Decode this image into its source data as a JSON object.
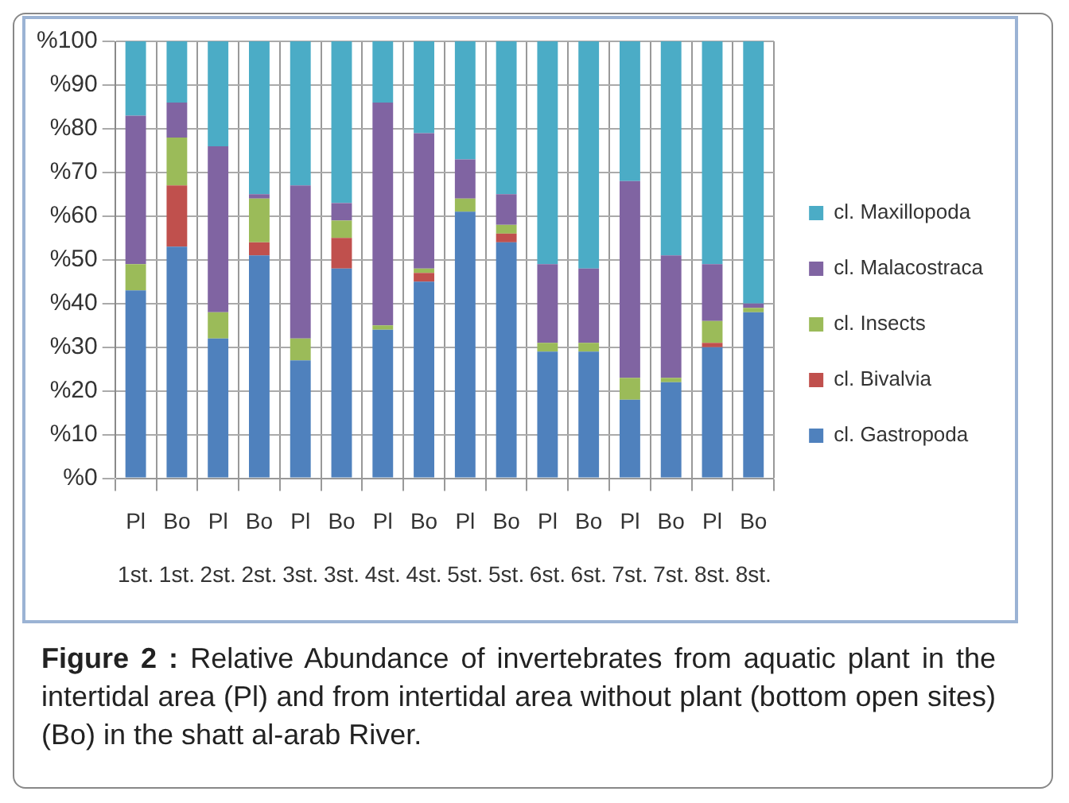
{
  "chart_data": {
    "type": "bar",
    "stacked": true,
    "categories": [
      "Pl\n1st.",
      "Bo\n1st.",
      "Pl\n2st.",
      "Bo\n2st.",
      "Pl\n3st.",
      "Bo\n3st.",
      "Pl\n4st.",
      "Bo\n4st.",
      "Pl\n5st.",
      "Bo\n5st.",
      "Pl\n6st.",
      "Bo\n6st.",
      "Pl\n7st.",
      "Bo\n7st.",
      "Pl\n8st.",
      "Bo\n8st."
    ],
    "series": [
      {
        "name": "cl. Gastropoda",
        "color": "#4f81bd",
        "values": [
          43,
          53,
          32,
          51,
          27,
          48,
          34,
          45,
          61,
          54,
          29,
          29,
          18,
          22,
          30,
          38
        ]
      },
      {
        "name": "cl. Bivalvia",
        "color": "#c0504d",
        "values": [
          0,
          14,
          0,
          3,
          0,
          7,
          0,
          2,
          0,
          2,
          0,
          0,
          0,
          0,
          1,
          0
        ]
      },
      {
        "name": "cl. Insects",
        "color": "#9bbb59",
        "values": [
          6,
          11,
          6,
          10,
          5,
          4,
          1,
          1,
          3,
          2,
          2,
          2,
          5,
          1,
          5,
          1
        ]
      },
      {
        "name": "cl. Malacostraca",
        "color": "#8064a2",
        "values": [
          34,
          8,
          38,
          1,
          35,
          4,
          51,
          31,
          9,
          7,
          18,
          17,
          45,
          28,
          13,
          1
        ]
      },
      {
        "name": "cl. Maxillopoda",
        "color": "#4bacc6",
        "values": [
          17,
          14,
          24,
          35,
          33,
          37,
          14,
          21,
          27,
          35,
          51,
          52,
          32,
          49,
          51,
          60
        ]
      }
    ],
    "ylim": [
      0,
      100
    ],
    "yticks": [
      {
        "value": 0,
        "label": "%0"
      },
      {
        "value": 10,
        "label": "%10"
      },
      {
        "value": 20,
        "label": "%20"
      },
      {
        "value": 30,
        "label": "%30"
      },
      {
        "value": 40,
        "label": "%40"
      },
      {
        "value": 50,
        "label": "%50"
      },
      {
        "value": 60,
        "label": "%60"
      },
      {
        "value": 70,
        "label": "%70"
      },
      {
        "value": 80,
        "label": "%80"
      },
      {
        "value": 90,
        "label": "%90"
      },
      {
        "value": 100,
        "label": "%100"
      }
    ],
    "grid": true,
    "legend": "right",
    "annotations": [
      "Figure 2 : Relative Abundance of invertebrates from aquatic plant in the intertidal area (Pl) and from intertidal area without plant (bottom open sites) (Bo) in the shatt al-arab River."
    ]
  }
}
